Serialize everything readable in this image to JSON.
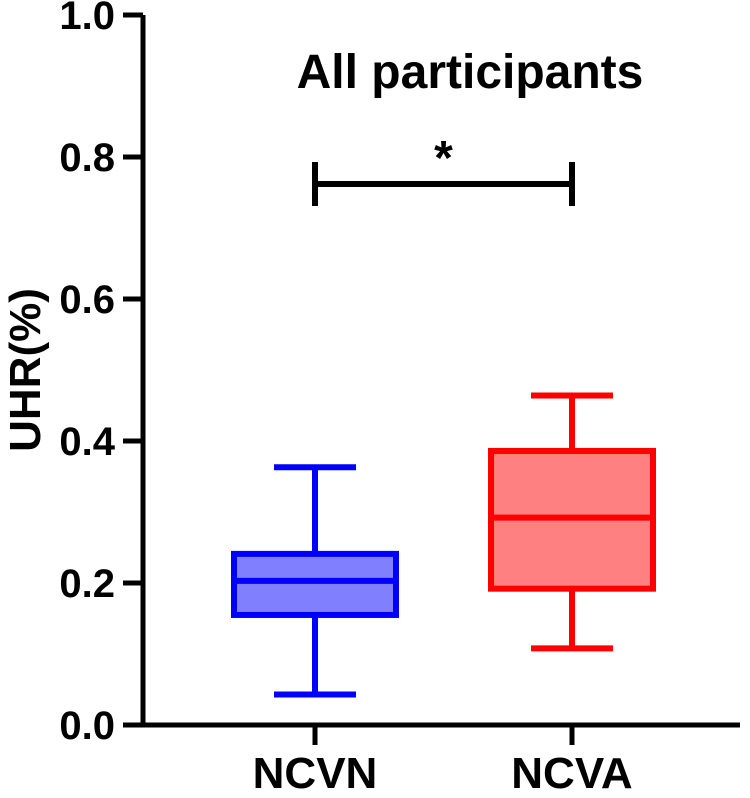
{
  "chart_data": {
    "type": "box",
    "title": "All participants",
    "ylabel": "UHR(%)",
    "xlabel": "",
    "ylim": [
      0.0,
      1.0
    ],
    "yticks": [
      "0.0",
      "0.2",
      "0.4",
      "0.6",
      "0.8",
      "1.0"
    ],
    "grid": false,
    "categories": [
      "NCVN",
      "NCVA"
    ],
    "boxes": [
      {
        "category": "NCVN",
        "min": 0.043,
        "q1": 0.155,
        "median": 0.203,
        "q3": 0.241,
        "max": 0.363,
        "stroke": "#0000ff",
        "fill": "#8080ff"
      },
      {
        "category": "NCVA",
        "min": 0.108,
        "q1": 0.192,
        "median": 0.292,
        "q3": 0.386,
        "max": 0.464,
        "stroke": "#ff0000",
        "fill": "#ff8080"
      }
    ],
    "significance": {
      "between": [
        "NCVN",
        "NCVA"
      ],
      "y": 0.762,
      "label": "*"
    }
  }
}
